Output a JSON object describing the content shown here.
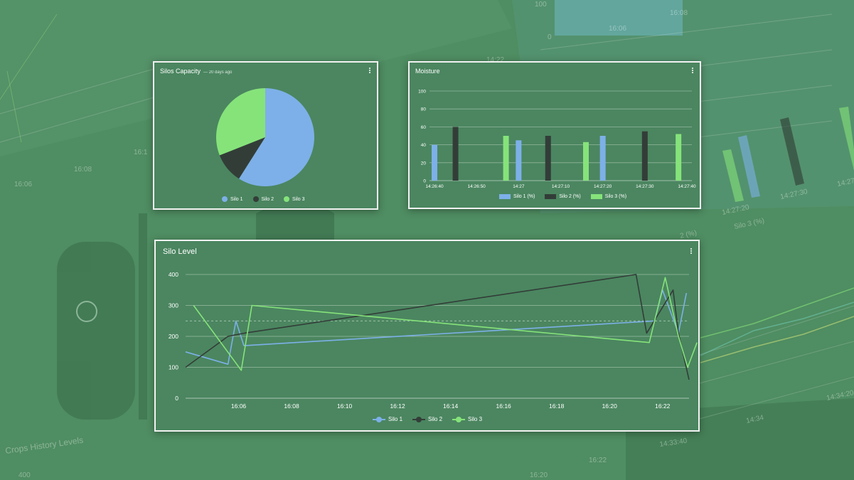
{
  "background": {
    "caption": "Crops History Levels",
    "labels": [
      "100",
      "0",
      "16:08",
      "16:06",
      "14:22",
      "16:06",
      "16:08",
      "16:1",
      "14:27:20",
      "14:27:30",
      "14:27:4",
      "2 (%)",
      "Silo 3 (%)",
      "14:34",
      "14:34:20",
      "14:33:40",
      "16:20",
      "16:22",
      "400"
    ]
  },
  "colors": {
    "silo1": "#7db0e8",
    "silo2": "#333d38",
    "silo3": "#86e37a",
    "card_bg": "#4b8660",
    "grid": "#d9e8dc"
  },
  "capacity": {
    "title": "Silos Capacity",
    "subtitle": "— 20 days ago",
    "menu_icon": "more-vert-icon",
    "legend": [
      "Silo 1",
      "Silo 2",
      "Silo 3"
    ]
  },
  "moisture": {
    "title": "Moisture",
    "menu_icon": "more-vert-icon",
    "legend": [
      "Silo 1 (%)",
      "Silo 2 (%)",
      "Silo 3 (%)"
    ]
  },
  "level": {
    "title": "Silo Level",
    "menu_icon": "more-vert-icon",
    "legend": [
      "Silo 1",
      "Silo 2",
      "Silo 3"
    ]
  },
  "chart_data": [
    {
      "type": "pie",
      "title": "Silos Capacity",
      "categories": [
        "Silo 1",
        "Silo 2",
        "Silo 3"
      ],
      "values": [
        59,
        10,
        31
      ]
    },
    {
      "type": "bar",
      "title": "Moisture",
      "ylim": [
        0,
        100
      ],
      "yticks": [
        0,
        20,
        40,
        60,
        80,
        100
      ],
      "xticks": [
        "14:26:40",
        "14:26:50",
        "14:27",
        "14:27:10",
        "14:27:20",
        "14:27:30",
        "14:27:40"
      ],
      "xrange_seconds": [
        0,
        60
      ],
      "series": [
        {
          "name": "Silo 1 (%)",
          "x_seconds": [
            0,
            20,
            40
          ],
          "values": [
            40,
            45,
            50
          ]
        },
        {
          "name": "Silo 2 (%)",
          "x_seconds": [
            5,
            27,
            50
          ],
          "values": [
            60,
            50,
            55
          ]
        },
        {
          "name": "Silo 3 (%)",
          "x_seconds": [
            17,
            36,
            58
          ],
          "values": [
            50,
            43,
            52
          ]
        }
      ]
    },
    {
      "type": "line",
      "title": "Silo Level",
      "ylim": [
        0,
        400
      ],
      "yticks": [
        0,
        100,
        200,
        300,
        400
      ],
      "xticks": [
        "16:06",
        "16:08",
        "16:10",
        "16:12",
        "16:14",
        "16:16",
        "16:18",
        "16:20",
        "16:22"
      ],
      "xrange_minutes": [
        0,
        19
      ],
      "reference_line": 250,
      "series": [
        {
          "name": "Silo 1",
          "x_minutes": [
            0,
            1.6,
            1.9,
            2.2,
            17.7,
            18.0,
            18.6,
            18.9
          ],
          "values": [
            150,
            110,
            250,
            170,
            250,
            350,
            210,
            340
          ]
        },
        {
          "name": "Silo 2",
          "x_minutes": [
            0,
            1.6,
            2.2,
            17.0,
            17.4,
            18.4,
            18.6,
            19.0
          ],
          "values": [
            100,
            200,
            210,
            400,
            210,
            350,
            210,
            60
          ]
        },
        {
          "name": "Silo 3",
          "x_minutes": [
            0.3,
            2.1,
            2.5,
            17.5,
            18.1,
            18.6,
            18.95,
            19.3
          ],
          "values": [
            300,
            90,
            300,
            180,
            390,
            200,
            100,
            180
          ]
        }
      ]
    }
  ]
}
